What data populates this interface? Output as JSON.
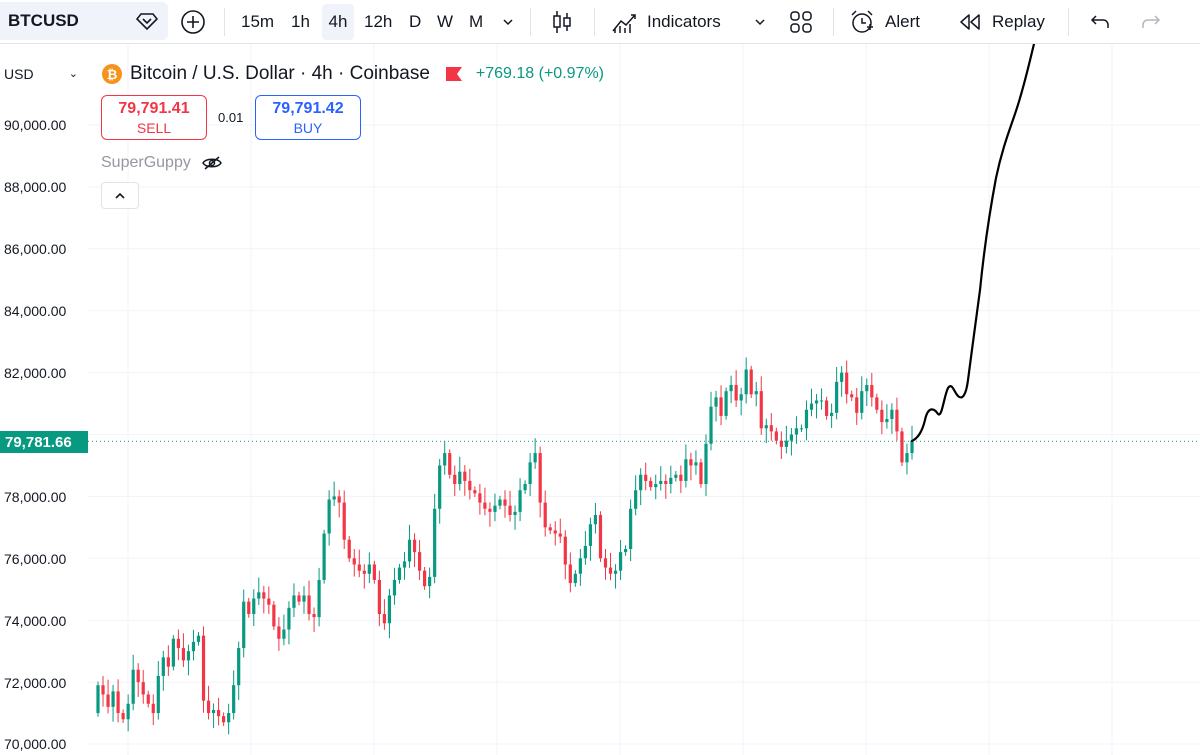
{
  "toolbar": {
    "symbol": "BTCUSD",
    "timeframes": [
      "15m",
      "1h",
      "4h",
      "12h",
      "D",
      "W",
      "M"
    ],
    "active_timeframe": "4h",
    "indicators_label": "Indicators",
    "alert_label": "Alert",
    "replay_label": "Replay"
  },
  "legend": {
    "title": "Bitcoin / U.S. Dollar · 4h · Coinbase",
    "change": "+769.18 (+0.97%)",
    "sell_price": "79,791.41",
    "sell_label": "SELL",
    "spread": "0.01",
    "buy_price": "79,791.42",
    "buy_label": "BUY",
    "indicator_name": "SuperGuppy"
  },
  "price_axis": {
    "currency": "USD",
    "last_price": "79,781.66",
    "labels": [
      "90,000.00",
      "88,000.00",
      "86,000.00",
      "84,000.00",
      "82,000.00",
      "78,000.00",
      "76,000.00",
      "74,000.00",
      "72,000.00",
      "70,000.00"
    ]
  },
  "colors": {
    "up": "#089981",
    "down": "#f23645",
    "accent": "#2962ff",
    "last_price_tag": "#089981"
  },
  "chart_data": {
    "type": "candlestick",
    "series": [
      {
        "name": "BTCUSD",
        "close": [
          71900,
          71600,
          71200,
          71700,
          71000,
          70800,
          71300,
          72400,
          72000,
          71600,
          71300,
          71000,
          72200,
          72800,
          72500,
          73400,
          73100,
          72700,
          73000,
          73300,
          73500,
          71400,
          71000,
          71100,
          70900,
          70700,
          71000,
          71900,
          73100,
          74600,
          74200,
          74700,
          74900,
          74700,
          74500,
          73800,
          73400,
          73700,
          74400,
          74800,
          74600,
          74800,
          74200,
          74100,
          75300,
          76800,
          77900,
          78000,
          77800,
          76600,
          76000,
          75800,
          75600,
          75500,
          75800,
          75300,
          74200,
          73900,
          74800,
          75300,
          75700,
          75900,
          76600,
          76200,
          75600,
          75100,
          75400,
          77600,
          79000,
          79400,
          78700,
          78400,
          78800,
          78500,
          78200,
          78100,
          77800,
          77600,
          77500,
          77700,
          77900,
          77700,
          77400,
          77500,
          78200,
          78400,
          79100,
          79400,
          77800,
          77000,
          76900,
          76800,
          76700,
          75800,
          75200,
          75500,
          76000,
          76400,
          77100,
          77400,
          76000,
          75700,
          75500,
          75600,
          76200,
          76300,
          77600,
          78200,
          78700,
          78500,
          78300,
          78400,
          78500,
          78400,
          78600,
          78700,
          78500,
          79200,
          79000,
          79100,
          78400,
          79700,
          80900,
          81200,
          80600,
          81400,
          81600,
          81100,
          81300,
          82100,
          81300,
          81400,
          80200,
          80300,
          80100,
          79800,
          79600,
          79800,
          80000,
          80200,
          80200,
          80800,
          81000,
          81100,
          81100,
          80600,
          80700,
          81700,
          82000,
          81300,
          81200,
          80700,
          81400,
          81600,
          81200,
          80800,
          80400,
          80500,
          80800,
          80100,
          79100,
          79400,
          79800
        ],
        "note": "approximate 4h closes read from the chart; wicks and opens omitted"
      }
    ],
    "ylim": [
      69500,
      91500
    ],
    "y_ticks": [
      70000,
      72000,
      74000,
      76000,
      78000,
      80000,
      82000,
      84000,
      86000,
      88000,
      90000
    ],
    "grid": true,
    "drawing": "hand-drawn projection line rising steeply from last candle above 90,000"
  }
}
